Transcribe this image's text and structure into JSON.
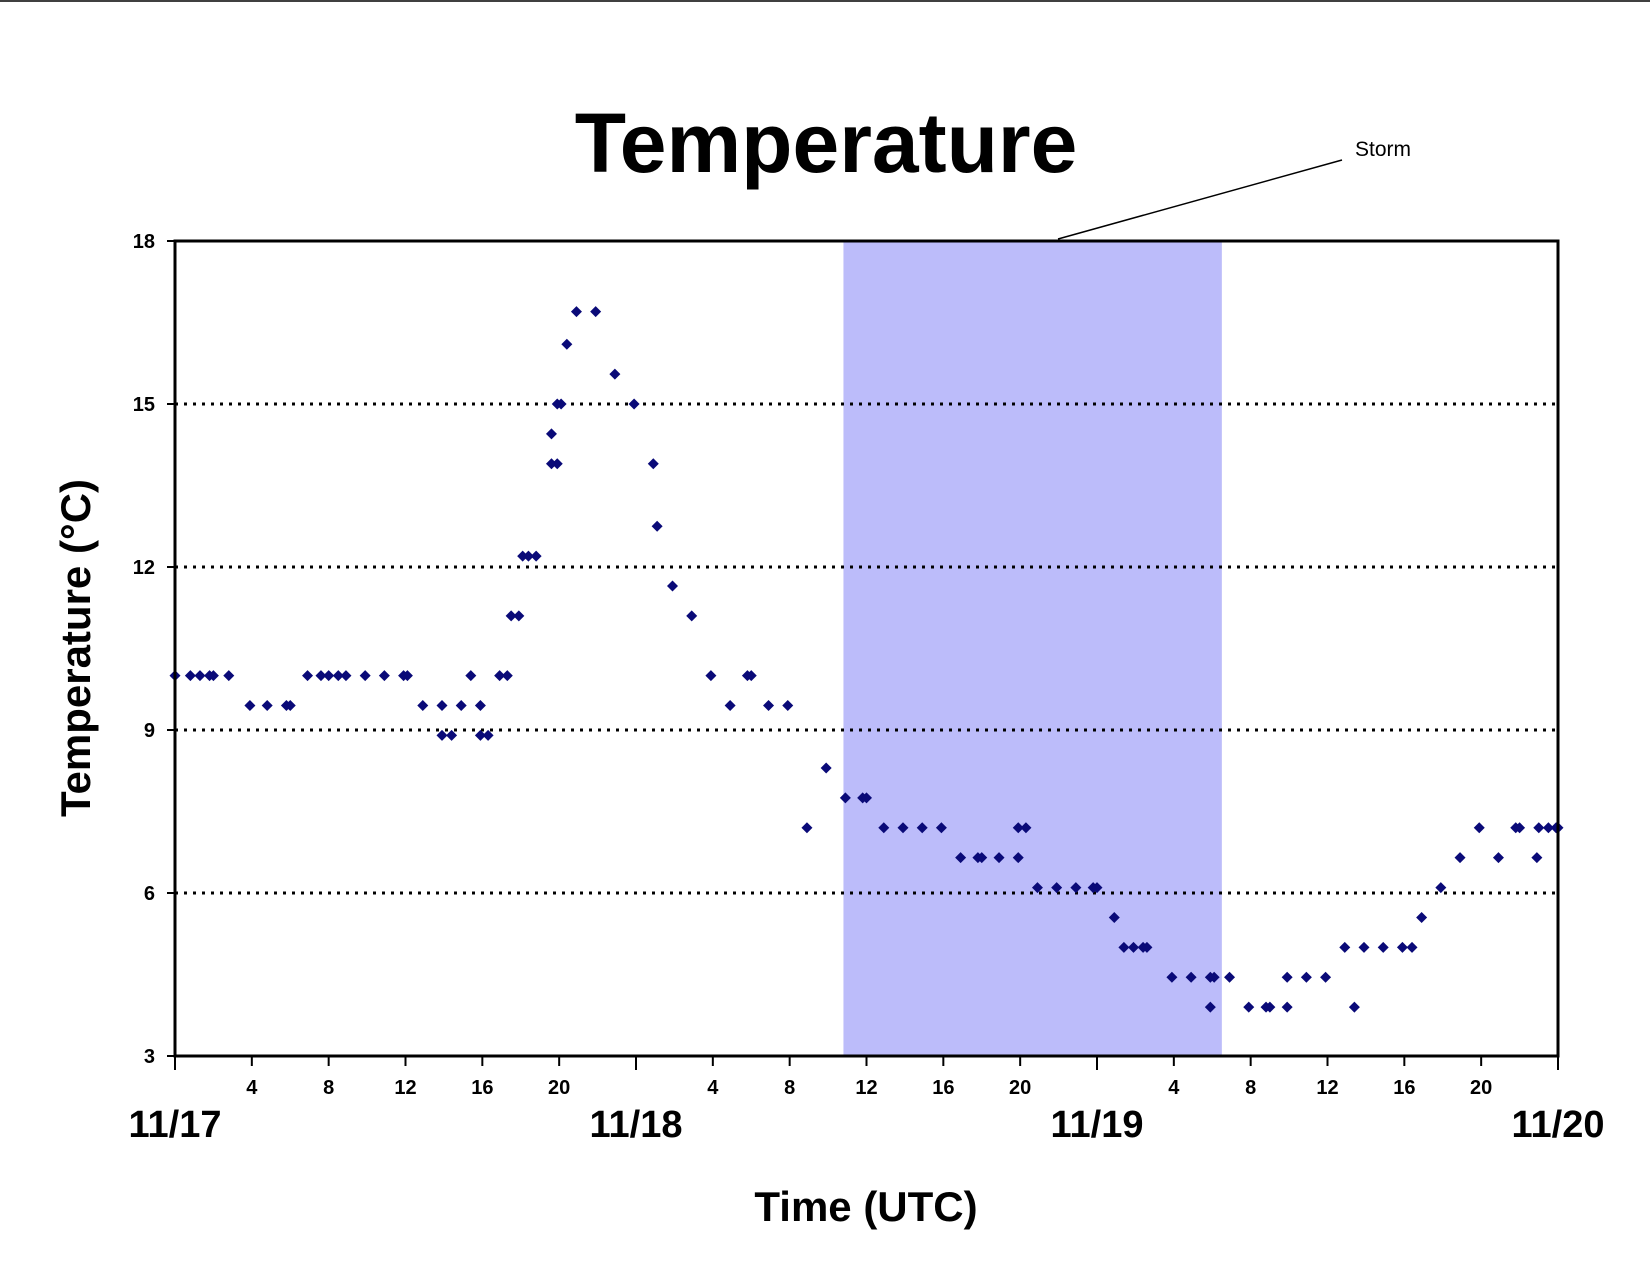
{
  "chart_data": {
    "type": "scatter",
    "title": "Temperature",
    "xlabel": "Time (UTC)",
    "ylabel": "Temperature (°C)",
    "ylim": [
      3,
      18
    ],
    "yticks": [
      "3",
      "6",
      "9",
      "12",
      "15",
      "18"
    ],
    "x_unit": "hours since 11/17 00 UTC",
    "xlim": [
      0,
      72
    ],
    "hour_ticks": [
      "4",
      "8",
      "12",
      "16",
      "20",
      "4",
      "8",
      "12",
      "16",
      "20",
      "4",
      "8",
      "12",
      "16",
      "20"
    ],
    "date_labels": [
      "11/17",
      "11/18",
      "11/19",
      "11/20"
    ],
    "grid": "horizontal dotted at 6, 9, 12, 15",
    "shaded_region": {
      "label": "Storm",
      "x_start": 34.8,
      "x_end": 54.5,
      "color": "#bcbcfa"
    },
    "marker_color": "#0a0a78",
    "series": [
      {
        "values": [
          [
            0.0,
            10.0
          ],
          [
            0.8,
            10.0
          ],
          [
            1.3,
            10.0
          ],
          [
            1.8,
            10.0
          ],
          [
            2.0,
            10.0
          ],
          [
            2.8,
            10.0
          ],
          [
            3.9,
            9.45
          ],
          [
            4.8,
            9.45
          ],
          [
            5.8,
            9.45
          ],
          [
            6.0,
            9.45
          ],
          [
            6.9,
            10.0
          ],
          [
            7.6,
            10.0
          ],
          [
            8.0,
            10.0
          ],
          [
            8.5,
            10.0
          ],
          [
            8.9,
            10.0
          ],
          [
            9.9,
            10.0
          ],
          [
            10.9,
            10.0
          ],
          [
            11.9,
            10.0
          ],
          [
            12.1,
            10.0
          ],
          [
            12.9,
            9.45
          ],
          [
            13.9,
            8.9
          ],
          [
            13.9,
            9.45
          ],
          [
            14.4,
            8.9
          ],
          [
            14.9,
            9.45
          ],
          [
            15.4,
            10.0
          ],
          [
            15.9,
            8.9
          ],
          [
            15.9,
            9.45
          ],
          [
            16.3,
            8.9
          ],
          [
            16.9,
            10.0
          ],
          [
            17.3,
            10.0
          ],
          [
            17.5,
            11.1
          ],
          [
            17.9,
            11.1
          ],
          [
            18.1,
            12.2
          ],
          [
            18.4,
            12.2
          ],
          [
            18.8,
            12.2
          ],
          [
            19.6,
            13.9
          ],
          [
            19.6,
            14.45
          ],
          [
            19.9,
            13.9
          ],
          [
            19.9,
            15.0
          ],
          [
            20.1,
            15.0
          ],
          [
            20.4,
            16.1
          ],
          [
            20.9,
            16.7
          ],
          [
            21.9,
            16.7
          ],
          [
            22.9,
            15.55
          ],
          [
            23.9,
            15.0
          ],
          [
            24.9,
            13.9
          ],
          [
            25.1,
            12.75
          ],
          [
            25.9,
            11.65
          ],
          [
            26.9,
            11.1
          ],
          [
            27.9,
            10.0
          ],
          [
            28.9,
            9.45
          ],
          [
            29.8,
            10.0
          ],
          [
            30.0,
            10.0
          ],
          [
            30.9,
            9.45
          ],
          [
            31.9,
            9.45
          ],
          [
            32.9,
            7.2
          ],
          [
            33.9,
            8.3
          ],
          [
            34.9,
            7.75
          ],
          [
            35.8,
            7.75
          ],
          [
            36.0,
            7.75
          ],
          [
            36.9,
            7.2
          ],
          [
            37.9,
            7.2
          ],
          [
            38.9,
            7.2
          ],
          [
            39.9,
            7.2
          ],
          [
            40.9,
            6.65
          ],
          [
            41.8,
            6.65
          ],
          [
            42.0,
            6.65
          ],
          [
            42.9,
            6.65
          ],
          [
            43.9,
            6.65
          ],
          [
            43.9,
            7.2
          ],
          [
            44.3,
            7.2
          ],
          [
            44.9,
            6.1
          ],
          [
            45.9,
            6.1
          ],
          [
            46.9,
            6.1
          ],
          [
            47.8,
            6.1
          ],
          [
            48.0,
            6.1
          ],
          [
            48.9,
            5.55
          ],
          [
            49.4,
            5.0
          ],
          [
            49.9,
            5.0
          ],
          [
            50.4,
            5.0
          ],
          [
            50.6,
            5.0
          ],
          [
            51.9,
            4.45
          ],
          [
            52.9,
            4.45
          ],
          [
            53.9,
            3.9
          ],
          [
            53.9,
            4.45
          ],
          [
            54.1,
            4.45
          ],
          [
            54.9,
            4.45
          ],
          [
            55.9,
            3.9
          ],
          [
            56.8,
            3.9
          ],
          [
            57.0,
            3.9
          ],
          [
            57.9,
            3.9
          ],
          [
            57.9,
            4.45
          ],
          [
            58.9,
            4.45
          ],
          [
            59.9,
            4.45
          ],
          [
            60.9,
            5.0
          ],
          [
            61.4,
            3.9
          ],
          [
            61.9,
            5.0
          ],
          [
            62.9,
            5.0
          ],
          [
            63.9,
            5.0
          ],
          [
            64.4,
            5.0
          ],
          [
            64.9,
            5.55
          ],
          [
            65.9,
            6.1
          ],
          [
            66.9,
            6.65
          ],
          [
            67.9,
            7.2
          ],
          [
            68.9,
            6.65
          ],
          [
            69.8,
            7.2
          ],
          [
            70.0,
            7.2
          ],
          [
            70.9,
            6.65
          ],
          [
            71.0,
            7.2
          ],
          [
            71.5,
            7.2
          ],
          [
            71.9,
            7.2
          ],
          [
            72.0,
            7.2
          ]
        ]
      }
    ]
  }
}
